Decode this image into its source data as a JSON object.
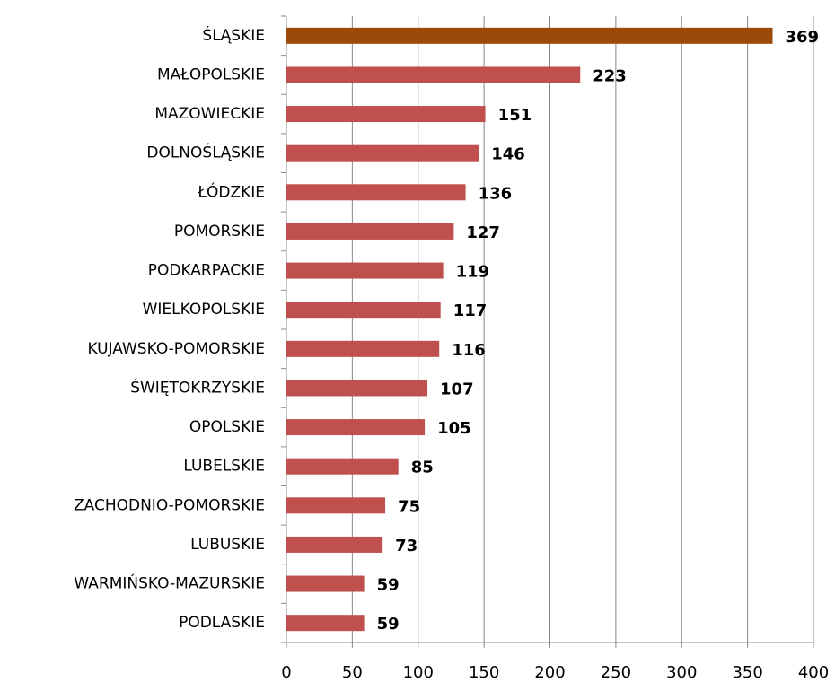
{
  "chart_data": {
    "type": "bar",
    "orientation": "horizontal",
    "categories": [
      "ŚLĄSKIE",
      "MAŁOPOLSKIE",
      "MAZOWIECKIE",
      "DOLNOŚLĄSKIE",
      "ŁÓDZKIE",
      "POMORSKIE",
      "PODKARPACKIE",
      "WIELKOPOLSKIE",
      "KUJAWSKO-POMORSKIE",
      "ŚWIĘTOKRZYSKIE",
      "OPOLSKIE",
      "LUBELSKIE",
      "ZACHODNIO-POMORSKIE",
      "LUBUSKIE",
      "WARMIŃSKO-MAZURSKIE",
      "PODLASKIE"
    ],
    "values": [
      369,
      223,
      151,
      146,
      136,
      127,
      119,
      117,
      116,
      107,
      105,
      85,
      75,
      73,
      59,
      59
    ],
    "colors": [
      "#9c4a0a",
      "#c0504d",
      "#c0504d",
      "#c0504d",
      "#c0504d",
      "#c0504d",
      "#c0504d",
      "#c0504d",
      "#c0504d",
      "#c0504d",
      "#c0504d",
      "#c0504d",
      "#c0504d",
      "#c0504d",
      "#c0504d",
      "#c0504d"
    ],
    "xlim": [
      0,
      400
    ],
    "xticks": [
      0,
      50,
      100,
      150,
      200,
      250,
      300,
      350,
      400
    ],
    "grid": true
  }
}
